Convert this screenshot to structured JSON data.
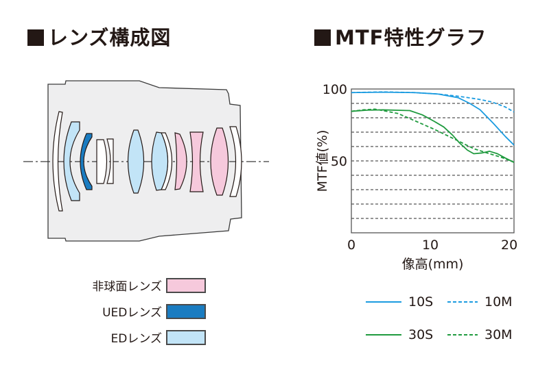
{
  "lens_section": {
    "title": "レンズ構成図"
  },
  "legend_lens": [
    {
      "label": "非球面レンズ",
      "color": "#f6c9dc"
    },
    {
      "label": "UEDレンズ",
      "color": "#1a7cc1"
    },
    {
      "label": "EDレンズ",
      "color": "#c2e4f7"
    }
  ],
  "mtf_section": {
    "title": "MTF特性グラフ"
  },
  "chart_data": {
    "type": "line",
    "title": "MTF特性グラフ",
    "xlabel": "像高(mm)",
    "ylabel": "MTF値(%)",
    "xlim": [
      0,
      20.6
    ],
    "ylim": [
      0,
      100
    ],
    "xticks": [
      "0",
      "10",
      "20"
    ],
    "yticks": [
      "50",
      "100"
    ],
    "grid": "horizontal dashed every 10%",
    "legend_placement": "bottom",
    "series": [
      {
        "name": "10S",
        "color": "#1a9be0",
        "dash": false,
        "x": [
          0,
          4,
          8,
          11,
          13.5,
          15,
          16.3,
          18,
          19.5,
          20.6
        ],
        "y": [
          97.5,
          97.8,
          97.5,
          96.5,
          94,
          90,
          85.6,
          76,
          67,
          61
        ]
      },
      {
        "name": "10M",
        "color": "#1a9be0",
        "dash": true,
        "x": [
          0,
          4,
          8,
          11,
          13.5,
          16,
          17.8,
          19.5,
          20.6
        ],
        "y": [
          97.5,
          98,
          97.5,
          96.5,
          95,
          93,
          91,
          87.5,
          84
        ]
      },
      {
        "name": "30S",
        "color": "#1f9a3e",
        "dash": false,
        "x": [
          0,
          2,
          4,
          7.4,
          9,
          10.5,
          11.7,
          12.8,
          13.7,
          14.7,
          15.5,
          16.5,
          17.5,
          18.5,
          19.5,
          20.6
        ],
        "y": [
          84.5,
          85.3,
          85.5,
          85,
          82,
          77.5,
          73.6,
          68,
          62.5,
          57.5,
          55,
          55.5,
          56.7,
          55,
          52,
          49
        ]
      },
      {
        "name": "30M",
        "color": "#1f9a3e",
        "dash": true,
        "x": [
          0,
          1.5,
          3,
          5.9,
          8,
          10.5,
          12,
          13.5,
          15.5,
          17.5,
          19,
          20.6
        ],
        "y": [
          84.5,
          85.5,
          86,
          83,
          78,
          72,
          68,
          64,
          58.5,
          55,
          52.5,
          49
        ]
      }
    ]
  }
}
